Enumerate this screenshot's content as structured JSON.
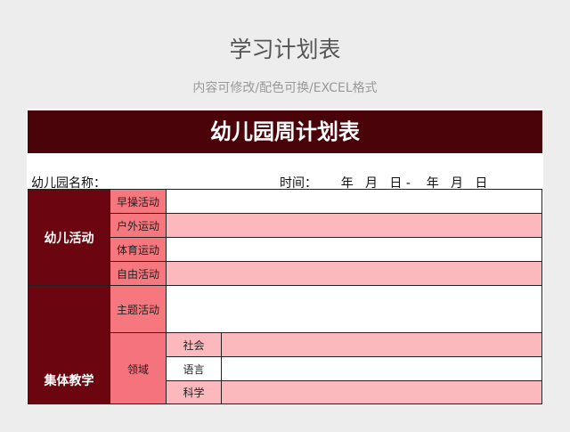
{
  "page_title": "学习计划表",
  "page_subtitle": "内容可修改/配色可换/EXCEL格式",
  "sheet": {
    "title": "幼儿园周计划表",
    "name_label": "幼儿园名称：",
    "time_label": "时间：      年   月   日 -    年   月   日",
    "cat1": "幼儿活动",
    "cat1_items": [
      "早操活动",
      "户外运动",
      "体育运动",
      "自由活动"
    ],
    "cat2": "集体教学",
    "theme": "主题活动",
    "domain": "领域",
    "domain_items": [
      "社会",
      "语言",
      "科学"
    ]
  },
  "colors": {
    "title_bar": "#4a0309",
    "category": "#6b0610",
    "subheader": "#f7777f",
    "pink_row": "#fbb8bd"
  }
}
